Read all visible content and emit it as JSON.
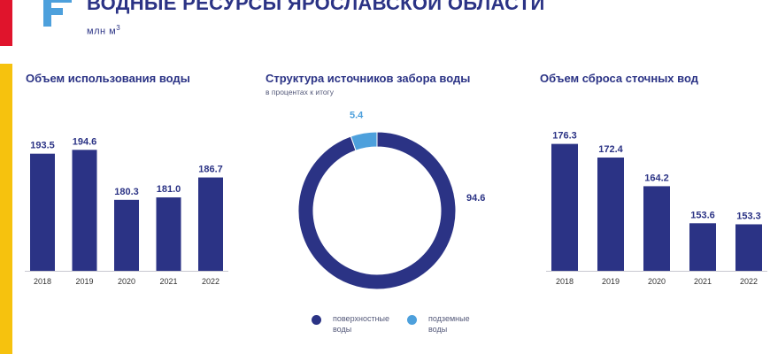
{
  "header": {
    "title": "ВОДНЫЕ РЕСУРСЫ ЯРОСЛАВСКОЙ ОБЛАСТИ",
    "title_mark": "*",
    "unit": "млн м",
    "unit_sup": "3"
  },
  "colors": {
    "primary": "#2b3385",
    "accent": "#4da0dc",
    "red": "#e0142c",
    "yellow": "#f6c20e"
  },
  "chart_data": [
    {
      "type": "bar",
      "title": "Объем использования воды",
      "categories": [
        "2018",
        "2019",
        "2020",
        "2021",
        "2022"
      ],
      "values": [
        193.5,
        194.6,
        180.3,
        181.0,
        186.7
      ],
      "value_labels": [
        "193.5",
        "194.6",
        "180.3",
        "181.0",
        "186.7"
      ],
      "ylim": [
        160,
        200
      ]
    },
    {
      "type": "pie",
      "title": "Структура источников забора воды",
      "subtitle": "в процентах к итогу",
      "series": [
        {
          "name": "поверхностные воды",
          "value": 94.6,
          "label": "94.6",
          "color": "#2b3385"
        },
        {
          "name": "подземные воды",
          "value": 5.4,
          "label": "5.4",
          "color": "#4da0dc"
        }
      ]
    },
    {
      "type": "bar",
      "title": "Объем сброса сточных вод",
      "categories": [
        "2018",
        "2019",
        "2020",
        "2021",
        "2022"
      ],
      "values": [
        176.3,
        172.4,
        164.2,
        153.6,
        153.3
      ],
      "value_labels": [
        "176.3",
        "172.4",
        "164.2",
        "153.6",
        "153.3"
      ],
      "ylim": [
        140,
        180
      ]
    }
  ]
}
